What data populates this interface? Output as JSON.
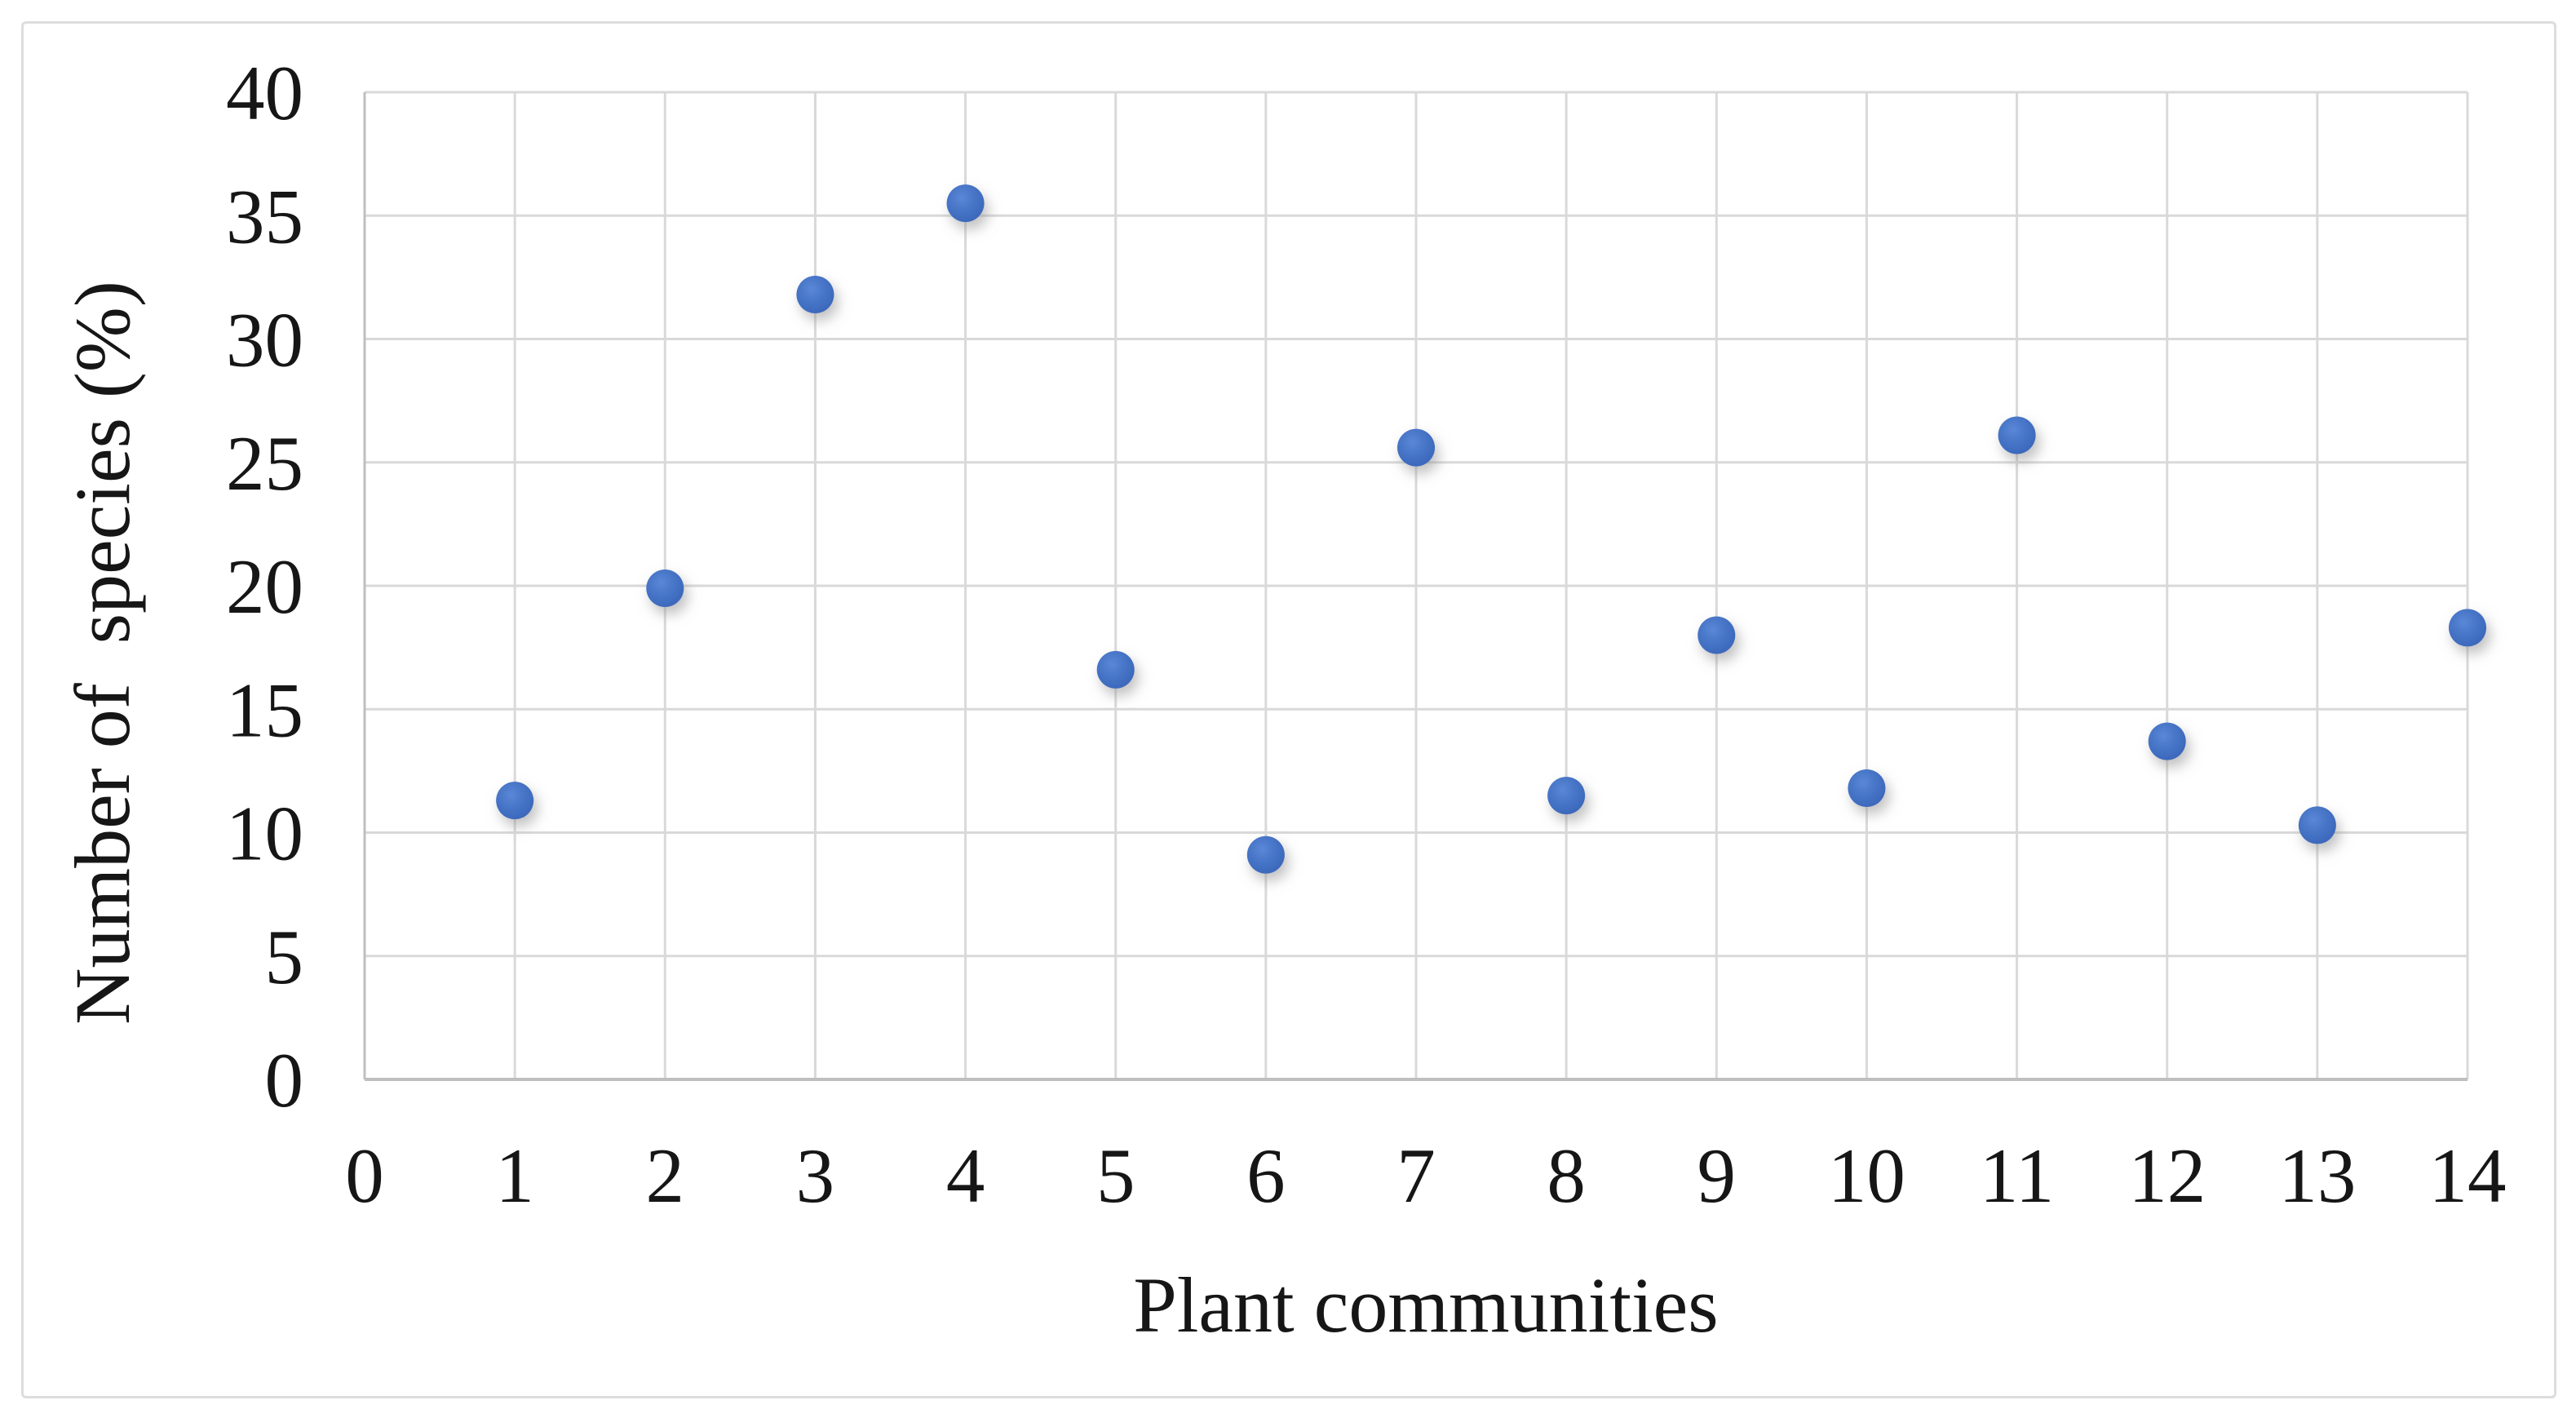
{
  "figure": {
    "background_color": "#ffffff",
    "border_color": "#dddddd"
  },
  "chart_data": {
    "type": "scatter",
    "title": "",
    "xlabel": "Plant communities",
    "ylabel": "Number of  species (%)",
    "series": [
      {
        "name": "Number of species (%)",
        "x": [
          1,
          2,
          3,
          4,
          5,
          6,
          7,
          8,
          9,
          10,
          11,
          12,
          13,
          14
        ],
        "y": [
          11.3,
          19.9,
          31.8,
          35.5,
          16.6,
          9.1,
          25.6,
          11.5,
          18.0,
          11.8,
          26.1,
          13.7,
          10.3,
          18.3
        ]
      }
    ],
    "xlim": [
      0,
      14
    ],
    "ylim": [
      0,
      40
    ],
    "xticks": [
      0,
      1,
      2,
      3,
      4,
      5,
      6,
      7,
      8,
      9,
      10,
      11,
      12,
      13,
      14
    ],
    "yticks": [
      0,
      5,
      10,
      15,
      20,
      25,
      30,
      35,
      40
    ],
    "grid": true,
    "legend_position": "none",
    "marker_color": "#4472C4",
    "marker_shape": "circle",
    "gridline_color": "#D9D9D9",
    "axis_line_color": "#BFBFBF",
    "tick_label_color": "#161616"
  }
}
